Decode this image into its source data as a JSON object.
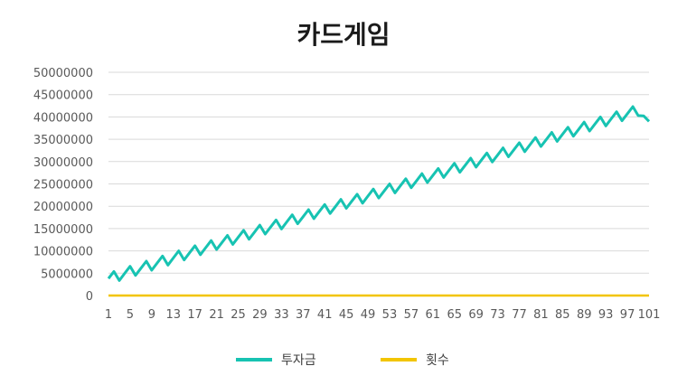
{
  "chart_data": {
    "type": "line",
    "title": "카드게임",
    "xlabel": "",
    "ylabel": "",
    "ylim": [
      0,
      50000000
    ],
    "y_ticks": [
      "0",
      "5000000",
      "10000000",
      "15000000",
      "20000000",
      "25000000",
      "30000000",
      "35000000",
      "40000000",
      "45000000",
      "50000000"
    ],
    "x_ticks": [
      "1",
      "5",
      "9",
      "13",
      "17",
      "21",
      "25",
      "29",
      "33",
      "37",
      "41",
      "45",
      "49",
      "53",
      "57",
      "61",
      "65",
      "69",
      "73",
      "77",
      "81",
      "85",
      "89",
      "93",
      "97",
      "101"
    ],
    "x_count": 101,
    "legend_position": "bottom",
    "series": [
      {
        "name": "투자금",
        "color": "#17c3b2",
        "values_note": "zigzag rising from ~3800000 at round 1 to ~41500000 near round 99, ending ~39000000 at round 101",
        "start": 3800000,
        "peak_round": 99,
        "peak": 41500000,
        "end": 39000000
      },
      {
        "name": "횟수",
        "color": "#f2c500",
        "values_note": "near zero for all rounds",
        "value": 0
      }
    ]
  }
}
